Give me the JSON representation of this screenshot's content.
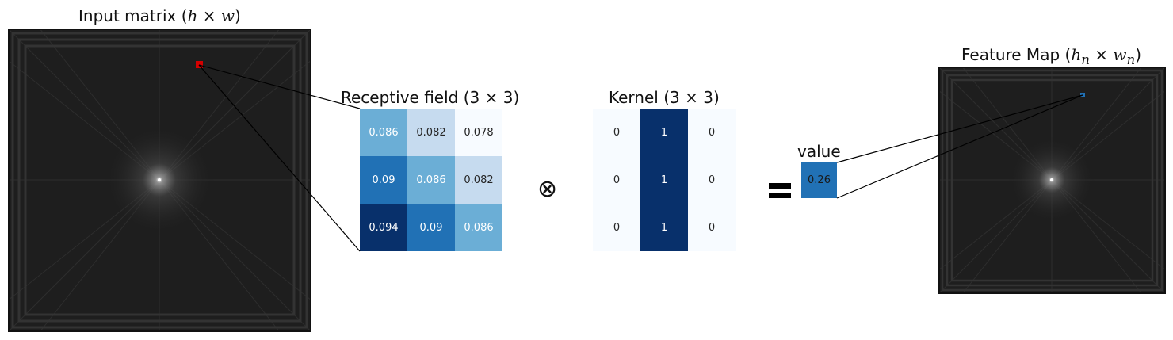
{
  "titles": {
    "input": {
      "text": "Input matrix (",
      "var1": "h",
      "op": " × ",
      "var2": "w",
      "close": ")"
    },
    "receptive": {
      "text": "Receptive field (3",
      "op": " × ",
      "n": "3",
      "close": ")"
    },
    "kernel": {
      "text": "Kernel (3",
      "op": " × ",
      "n": "3",
      "close": ")"
    },
    "value": "value",
    "feature": {
      "text": "Feature Map (",
      "var1": "h",
      "sub1": "n",
      "op": " × ",
      "var2": "w",
      "sub2": "n",
      "close": ")"
    }
  },
  "receptive_field": {
    "values": [
      [
        "0.086",
        "0.082",
        "0.078"
      ],
      [
        "0.09",
        "0.086",
        "0.082"
      ],
      [
        "0.094",
        "0.09",
        "0.086"
      ]
    ],
    "colors": [
      [
        "#6baed6",
        "#c6dbef",
        "#f7fbff"
      ],
      [
        "#2171b5",
        "#6baed6",
        "#c6dbef"
      ],
      [
        "#08306b",
        "#2171b5",
        "#6baed6"
      ]
    ],
    "text_colors": [
      [
        "#ffffff",
        "#262626",
        "#262626"
      ],
      [
        "#ffffff",
        "#ffffff",
        "#262626"
      ],
      [
        "#ffffff",
        "#ffffff",
        "#ffffff"
      ]
    ]
  },
  "kernel": {
    "values": [
      [
        "0",
        "1",
        "0"
      ],
      [
        "0",
        "1",
        "0"
      ],
      [
        "0",
        "1",
        "0"
      ]
    ],
    "colors": [
      [
        "#f7fbff",
        "#08306b",
        "#f7fbff"
      ],
      [
        "#f7fbff",
        "#08306b",
        "#f7fbff"
      ],
      [
        "#f7fbff",
        "#08306b",
        "#f7fbff"
      ]
    ],
    "text_colors": [
      [
        "#262626",
        "#ffffff",
        "#262626"
      ],
      [
        "#262626",
        "#ffffff",
        "#262626"
      ],
      [
        "#262626",
        "#ffffff",
        "#262626"
      ]
    ]
  },
  "operators": {
    "convolve": "⊗"
  },
  "output_value": "0.26",
  "colors": {
    "highlight_input": "#d40000",
    "highlight_feature": "#2171b5",
    "value_box": "#2171b5",
    "image_background": "#1c1c1c"
  }
}
